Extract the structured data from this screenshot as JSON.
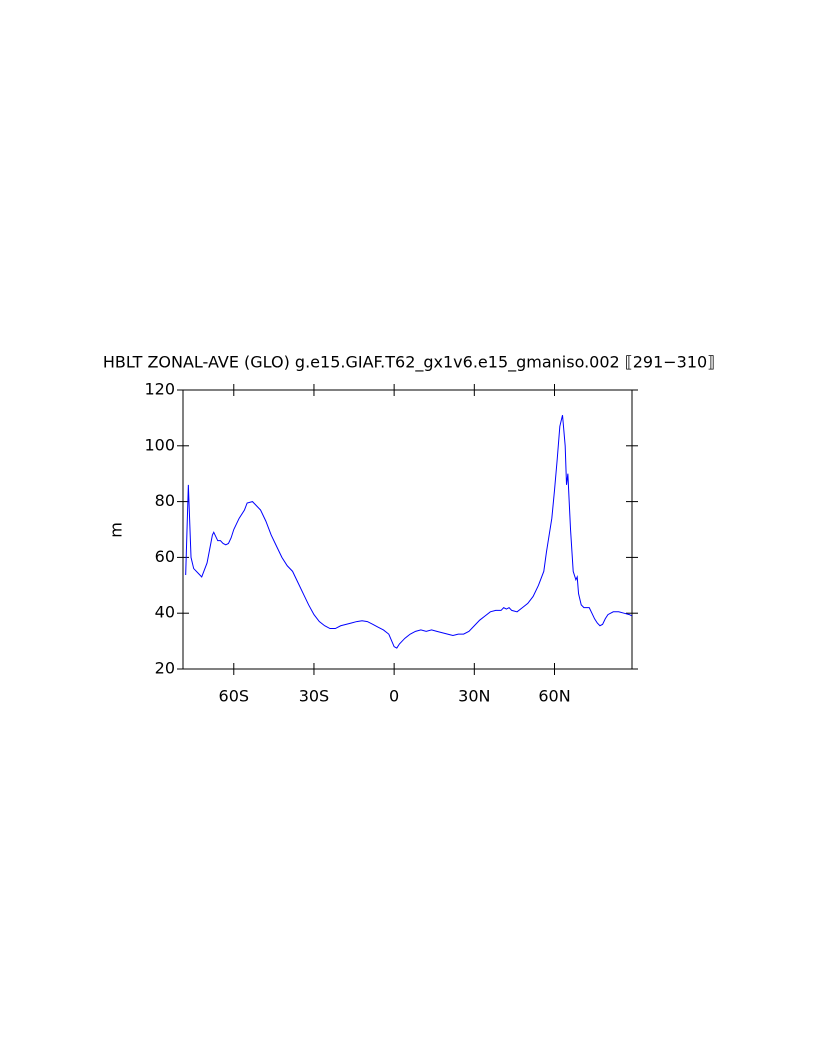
{
  "chart_data": {
    "type": "line",
    "title": "HBLT ZONAL-AVE (GLO) g.e15.GIAF.T62_gx1v6.e15_gmaniso.002 ⟦291−310⟧",
    "y_label": "m",
    "xlim": [
      -79,
      89
    ],
    "ylim": [
      20,
      120
    ],
    "xticks": [
      {
        "value": -60,
        "label": "60S"
      },
      {
        "value": -30,
        "label": "30S"
      },
      0,
      {
        "value": 30,
        "label": "30N"
      },
      {
        "value": 60,
        "label": "60N"
      }
    ],
    "yticks": [
      20,
      40,
      60,
      80,
      100,
      120
    ],
    "x": [
      -78,
      -77,
      -76,
      -75,
      -73,
      -72,
      -70,
      -69,
      -68,
      -67.5,
      -66,
      -65,
      -64,
      -63,
      -62,
      -61,
      -60,
      -58,
      -56,
      -55,
      -53,
      -52,
      -50,
      -48,
      -46,
      -44,
      -42,
      -40,
      -38,
      -36,
      -34,
      -32,
      -30,
      -28,
      -26,
      -24,
      -22,
      -20,
      -18,
      -16,
      -14,
      -12,
      -10,
      -8,
      -6,
      -4,
      -2,
      0,
      1,
      2,
      4,
      6,
      8,
      10,
      12,
      14,
      16,
      18,
      20,
      22,
      24,
      26,
      28,
      30,
      32,
      34,
      36,
      38,
      40,
      41,
      42,
      43,
      44,
      46,
      48,
      50,
      52,
      54,
      56,
      57,
      58,
      59,
      60,
      61,
      62,
      63,
      64,
      64.5,
      65,
      65.5,
      66,
      67,
      68,
      68.5,
      69,
      70,
      71,
      72,
      73,
      74,
      75,
      76,
      77,
      78,
      79,
      80,
      82,
      84,
      86,
      88,
      89
    ],
    "series": [
      {
        "color": "#0000ff",
        "values": [
          53.7,
          86,
          60,
          56,
          54,
          53,
          58,
          63,
          68,
          69,
          66,
          66,
          65,
          64.5,
          65,
          67,
          70,
          74,
          77,
          79.5,
          80,
          79,
          77,
          73,
          68,
          64,
          60,
          57,
          55,
          51,
          47,
          43,
          39.5,
          37,
          35.5,
          34.5,
          34.5,
          35.5,
          36,
          36.5,
          37,
          37.3,
          37,
          36,
          35,
          34,
          32.5,
          28,
          27.5,
          29,
          31,
          32.5,
          33.5,
          34,
          33.5,
          34,
          33.5,
          33,
          32.5,
          32,
          32.5,
          32.5,
          33.5,
          35.5,
          37.5,
          39,
          40.5,
          41,
          41,
          42,
          41.5,
          42,
          41,
          40.5,
          42,
          43.5,
          46,
          50,
          55,
          62,
          68,
          74,
          84,
          95,
          107,
          111,
          100,
          86,
          90,
          80,
          70,
          55,
          52,
          53,
          47,
          43,
          42,
          42,
          42,
          40,
          38,
          36.5,
          35.5,
          36,
          38,
          39.5,
          40.5,
          40.5,
          40,
          39.5,
          39
        ]
      }
    ]
  }
}
